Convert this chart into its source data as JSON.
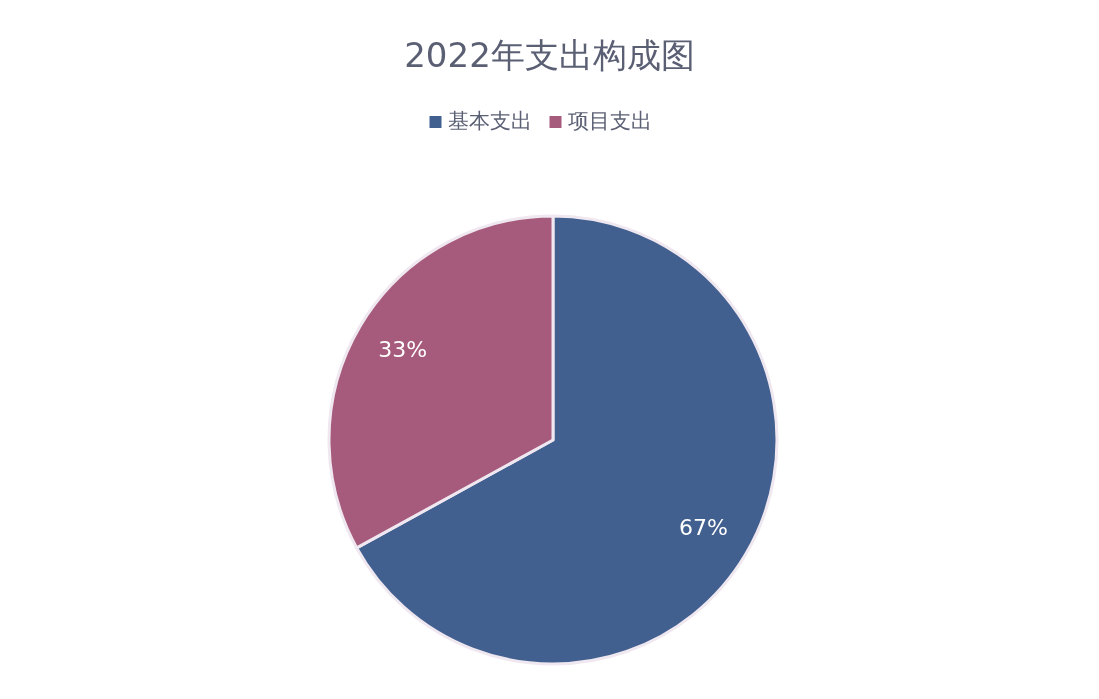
{
  "chart_data": {
    "type": "pie",
    "title": "2022年支出构成图",
    "categories": [
      "基本支出",
      "项目支出"
    ],
    "values": [
      67,
      33
    ],
    "value_labels": [
      "67%",
      "33%"
    ],
    "colors": [
      "#41608f",
      "#a65a7c"
    ],
    "legend": "top"
  }
}
